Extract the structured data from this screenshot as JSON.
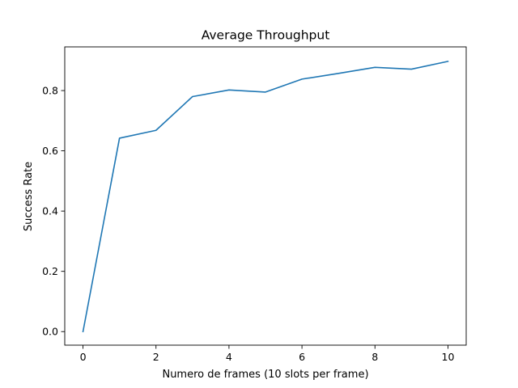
{
  "chart_data": {
    "type": "line",
    "title": "Average Throughput",
    "xlabel": "Numero de frames (10 slots per frame)",
    "ylabel": "Success Rate",
    "xlim": [
      -0.5,
      10.5
    ],
    "ylim": [
      -0.045,
      0.945
    ],
    "xticks": [
      0,
      2,
      4,
      6,
      8,
      10
    ],
    "yticks": [
      0.0,
      0.2,
      0.4,
      0.6,
      0.8
    ],
    "xtick_labels": [
      "0",
      "2",
      "4",
      "6",
      "8",
      "10"
    ],
    "ytick_labels": [
      "0.0",
      "0.2",
      "0.4",
      "0.6",
      "0.8"
    ],
    "grid": false,
    "series": [
      {
        "color": "#1f77b4",
        "x": [
          0,
          1,
          2,
          3,
          4,
          5,
          6,
          7,
          8,
          9,
          10
        ],
        "y": [
          0.0,
          0.642,
          0.668,
          0.78,
          0.802,
          0.795,
          0.838,
          0.857,
          0.877,
          0.871,
          0.897
        ]
      }
    ]
  }
}
